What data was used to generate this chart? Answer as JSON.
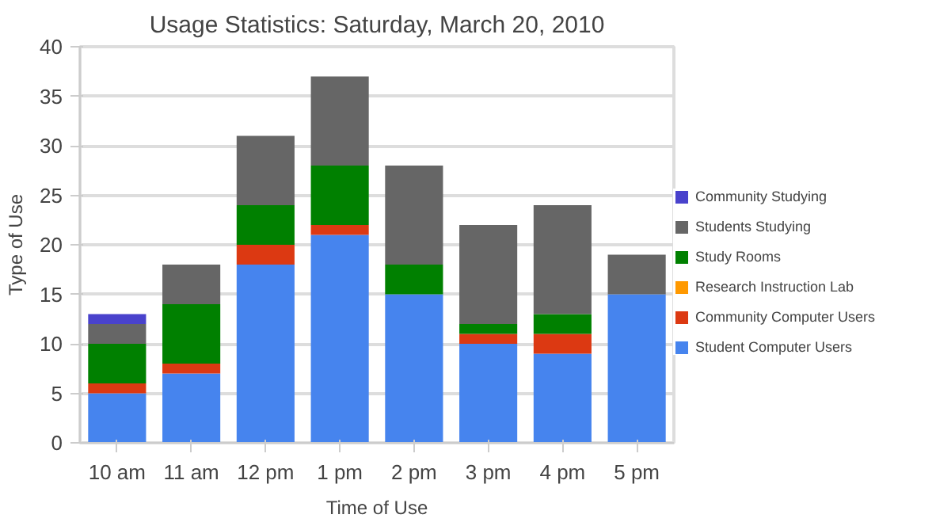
{
  "chart_data": {
    "type": "bar",
    "title": "Usage Statistics: Saturday, March 20, 2010",
    "xlabel": "Time of Use",
    "ylabel": "Type of Use",
    "categories": [
      "10 am",
      "11 am",
      "12 pm",
      "1 pm",
      "2 pm",
      "3 pm",
      "4 pm",
      "5 pm"
    ],
    "stacked": true,
    "ylim": [
      0,
      40
    ],
    "yticks": [
      0,
      5,
      10,
      15,
      20,
      25,
      30,
      35,
      40
    ],
    "grid": "y",
    "legend": "right",
    "series": [
      {
        "name": "Student Computer Users",
        "color": "#4684ee",
        "values": [
          5,
          7,
          18,
          21,
          15,
          10,
          9,
          15
        ]
      },
      {
        "name": "Community Computer Users",
        "color": "#dc3912",
        "values": [
          1,
          1,
          2,
          1,
          0,
          1,
          2,
          0
        ]
      },
      {
        "name": "Research Instruction Lab",
        "color": "#ff9900",
        "values": [
          0,
          0,
          0,
          0,
          0,
          0,
          0,
          0
        ]
      },
      {
        "name": "Study Rooms",
        "color": "#008000",
        "values": [
          4,
          6,
          4,
          6,
          3,
          1,
          2,
          0
        ]
      },
      {
        "name": "Students Studying",
        "color": "#666666",
        "values": [
          2,
          4,
          7,
          9,
          10,
          10,
          11,
          4
        ]
      },
      {
        "name": "Community Studying",
        "color": "#4942cc",
        "values": [
          1,
          0,
          0,
          0,
          0,
          0,
          0,
          0
        ]
      }
    ]
  }
}
